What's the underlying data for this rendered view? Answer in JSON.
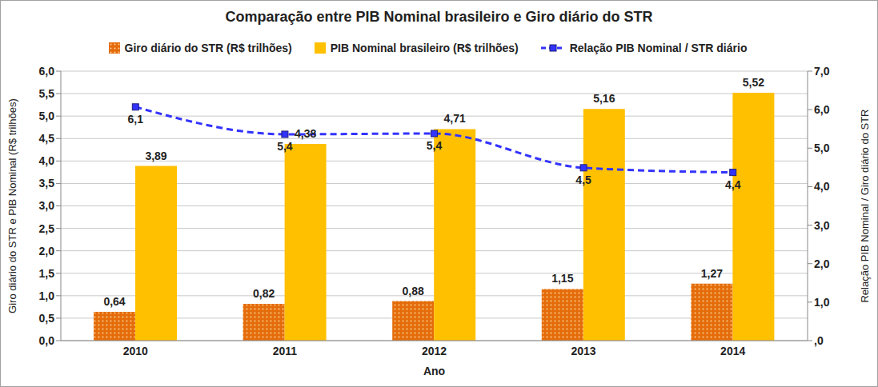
{
  "chart_data": {
    "type": "bar",
    "title": "Comparação entre PIB Nominal brasileiro e Giro diário do STR",
    "x_label": "Ano",
    "y_label": "Giro diário do STR e PIB Nominal (R$ trilhões)",
    "y2_label": "Relação PIB Nominal / Giro diário do STR",
    "categories": [
      "2010",
      "2011",
      "2012",
      "2013",
      "2014"
    ],
    "series": [
      {
        "name": "Giro diário do STR (R$ trilhões)",
        "type": "bar",
        "color": "#e46c0a",
        "values": [
          0.64,
          0.82,
          0.88,
          1.15,
          1.27
        ],
        "value_labels": [
          "0,64",
          "0,82",
          "0,88",
          "1,15",
          "1,27"
        ]
      },
      {
        "name": "PIB Nominal brasileiro (R$ trilhões)",
        "type": "bar",
        "color": "#ffc000",
        "values": [
          3.89,
          4.38,
          4.71,
          5.16,
          5.52
        ],
        "value_labels": [
          "3,89",
          "4,38",
          "4,71",
          "5,16",
          "5,52"
        ]
      },
      {
        "name": "Relação PIB Nominal / STR diário",
        "type": "line",
        "axis": "y2",
        "color": "#3333ff",
        "marker": "square",
        "line_style": "dashed",
        "values": [
          6.07,
          5.36,
          5.38,
          4.49,
          4.37
        ],
        "value_labels": [
          "6,1",
          "5,4",
          "5,4",
          "4,5",
          "4,4"
        ]
      }
    ],
    "ylim": [
      0,
      6
    ],
    "yticks": [
      {
        "value": 0,
        "label": "0,0"
      },
      {
        "value": 0.5,
        "label": "0,5"
      },
      {
        "value": 1,
        "label": "1,0"
      },
      {
        "value": 1.5,
        "label": "1,5"
      },
      {
        "value": 2,
        "label": "2,0"
      },
      {
        "value": 2.5,
        "label": "2,5"
      },
      {
        "value": 3,
        "label": "3,0"
      },
      {
        "value": 3.5,
        "label": "3,5"
      },
      {
        "value": 4,
        "label": "4,0"
      },
      {
        "value": 4.5,
        "label": "4,5"
      },
      {
        "value": 5,
        "label": "5,0"
      },
      {
        "value": 5.5,
        "label": "5,5"
      },
      {
        "value": 6,
        "label": "6,0"
      }
    ],
    "y2lim": [
      0,
      7
    ],
    "y2ticks": [
      {
        "value": 0,
        "label": ",0"
      },
      {
        "value": 1,
        "label": "1,0"
      },
      {
        "value": 2,
        "label": "2,0"
      },
      {
        "value": 3,
        "label": "3,0"
      },
      {
        "value": 4,
        "label": "4,0"
      },
      {
        "value": 5,
        "label": "5,0"
      },
      {
        "value": 6,
        "label": "6,0"
      },
      {
        "value": 7,
        "label": "7,0"
      }
    ],
    "grid": true,
    "legend": "top",
    "data_labels": true
  }
}
